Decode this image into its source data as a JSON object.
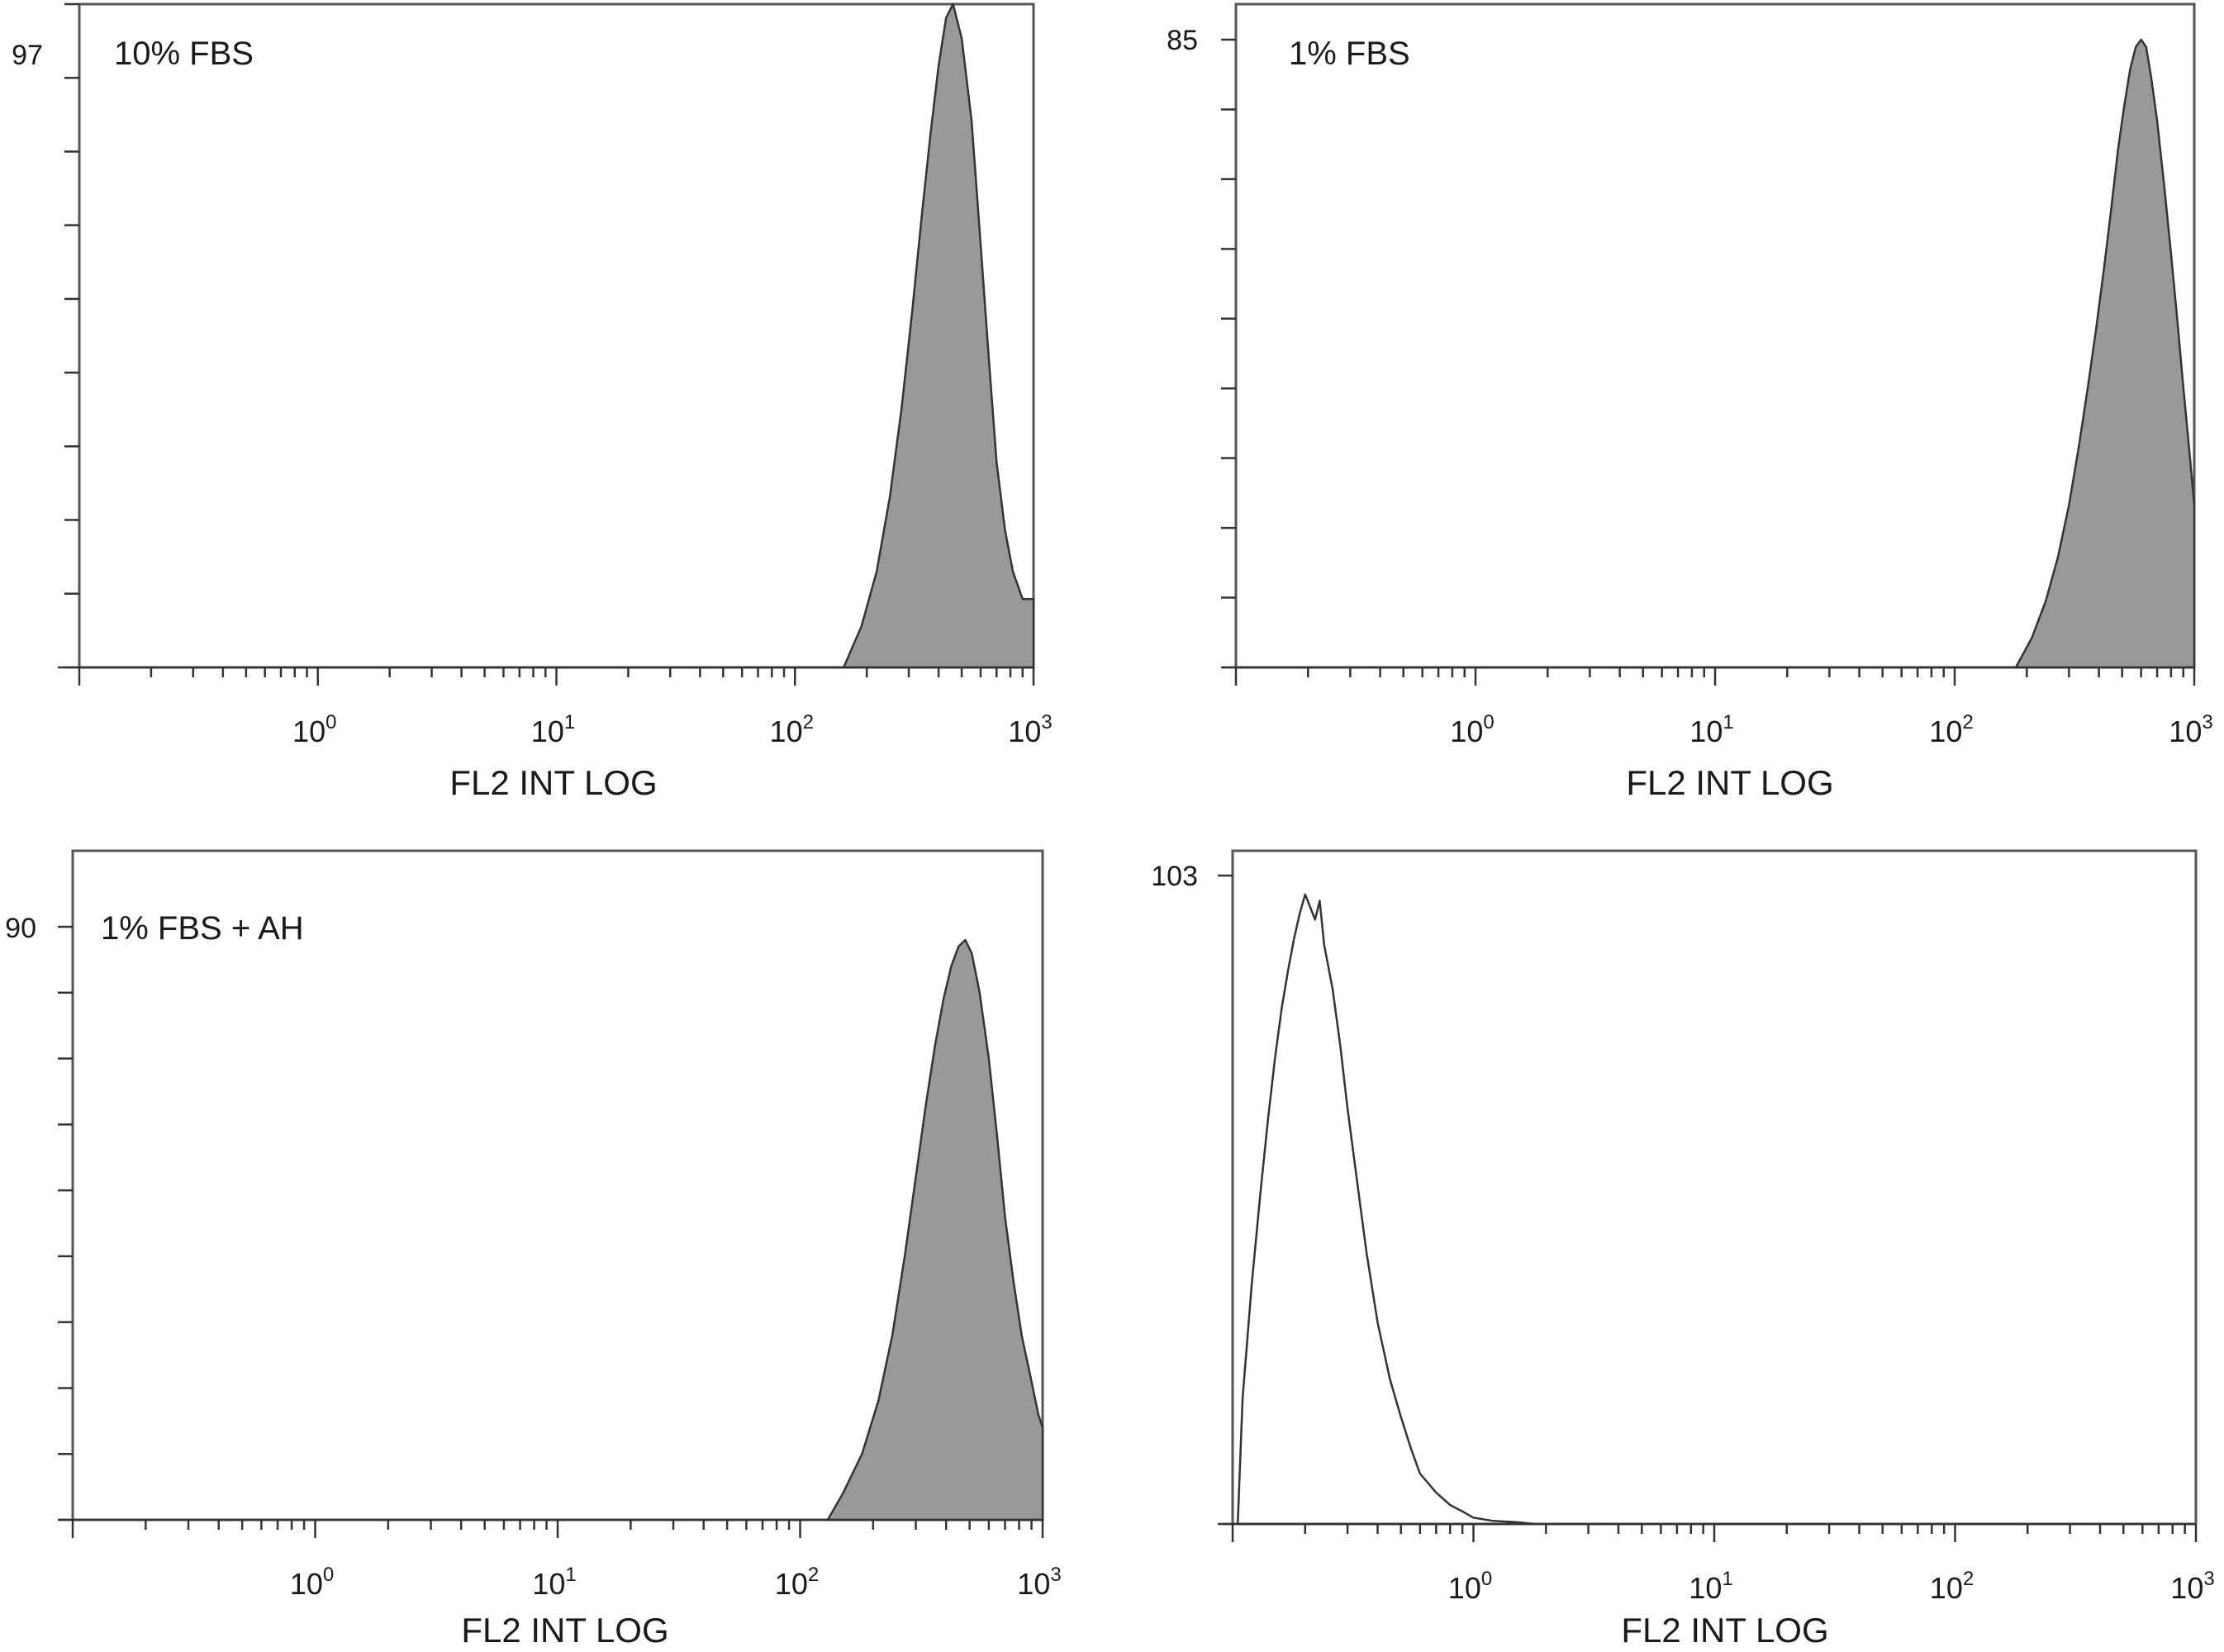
{
  "chart_data": [
    {
      "type": "area",
      "title": "10% FBS",
      "xlabel": "FL2 INT LOG",
      "ylabel": "",
      "x_scale": "log",
      "xlim": [
        0.1,
        1000
      ],
      "ylim": [
        0,
        97
      ],
      "y_max_label": "97",
      "y_minor_ticks": 9,
      "x_ticks": [
        {
          "base": "10",
          "exp": "0",
          "value": 1
        },
        {
          "base": "10",
          "exp": "1",
          "value": 10
        },
        {
          "base": "10",
          "exp": "2",
          "value": 100
        },
        {
          "base": "10",
          "exp": "3",
          "value": 1000
        }
      ],
      "fill": "#999999",
      "filled": true,
      "series": [
        {
          "x": [
            160,
            190,
            220,
            250,
            280,
            310,
            340,
            370,
            400,
            430,
            460,
            500,
            550,
            600,
            650,
            700,
            760,
            820,
            900,
            1000
          ],
          "y": [
            0,
            6,
            14,
            25,
            38,
            52,
            66,
            78,
            88,
            95,
            97,
            92,
            80,
            62,
            45,
            30,
            20,
            14,
            10,
            10
          ]
        }
      ]
    },
    {
      "type": "area",
      "title": "1% FBS",
      "xlabel": "FL2 INT LOG",
      "ylabel": "",
      "x_scale": "log",
      "xlim": [
        0.1,
        1000
      ],
      "ylim": [
        0,
        85
      ],
      "y_max_label": "85",
      "y_minor_ticks": 9,
      "x_ticks": [
        {
          "base": "10",
          "exp": "0",
          "value": 1
        },
        {
          "base": "10",
          "exp": "1",
          "value": 10
        },
        {
          "base": "10",
          "exp": "2",
          "value": 100
        },
        {
          "base": "10",
          "exp": "3",
          "value": 1000
        }
      ],
      "fill": "#999999",
      "filled": true,
      "series": [
        {
          "x": [
            180,
            210,
            240,
            270,
            300,
            330,
            360,
            390,
            420,
            450,
            480,
            510,
            540,
            570,
            600,
            630,
            660,
            700,
            750,
            800,
            850,
            900,
            950,
            1000
          ],
          "y": [
            0,
            4,
            9,
            15,
            22,
            30,
            38,
            46,
            54,
            62,
            70,
            76,
            81,
            84,
            85,
            84,
            80,
            74,
            65,
            56,
            47,
            38,
            30,
            22
          ]
        }
      ]
    },
    {
      "type": "area",
      "title": "1% FBS + AH",
      "xlabel": "FL2 INT LOG",
      "ylabel": "",
      "x_scale": "log",
      "xlim": [
        0.1,
        1000
      ],
      "ylim": [
        0,
        90
      ],
      "y_max_label": "90",
      "y_minor_ticks": 9,
      "x_ticks": [
        {
          "base": "10",
          "exp": "0",
          "value": 1
        },
        {
          "base": "10",
          "exp": "1",
          "value": 10
        },
        {
          "base": "10",
          "exp": "2",
          "value": 100
        },
        {
          "base": "10",
          "exp": "3",
          "value": 1000
        }
      ],
      "fill": "#999999",
      "filled": true,
      "series": [
        {
          "x": [
            130,
            150,
            180,
            210,
            240,
            270,
            300,
            330,
            360,
            390,
            420,
            450,
            480,
            510,
            550,
            600,
            650,
            700,
            760,
            820,
            900,
            960,
            1000
          ],
          "y": [
            0,
            4,
            10,
            18,
            28,
            40,
            52,
            63,
            72,
            79,
            84,
            87,
            88,
            86,
            80,
            70,
            58,
            46,
            36,
            28,
            21,
            16,
            14
          ]
        }
      ]
    },
    {
      "type": "line",
      "title": "",
      "xlabel": "FL2 INT LOG",
      "ylabel": "",
      "x_scale": "log",
      "xlim": [
        0.1,
        1000
      ],
      "ylim": [
        0,
        103
      ],
      "y_max_label": "103",
      "y_minor_ticks": 0,
      "x_ticks": [
        {
          "base": "10",
          "exp": "0",
          "value": 1
        },
        {
          "base": "10",
          "exp": "1",
          "value": 10
        },
        {
          "base": "10",
          "exp": "2",
          "value": 100
        },
        {
          "base": "10",
          "exp": "3",
          "value": 1000
        }
      ],
      "fill": "none",
      "filled": false,
      "series": [
        {
          "x": [
            0.105,
            0.11,
            0.12,
            0.13,
            0.14,
            0.15,
            0.16,
            0.17,
            0.18,
            0.19,
            0.2,
            0.21,
            0.22,
            0.23,
            0.24,
            0.26,
            0.28,
            0.3,
            0.33,
            0.36,
            0.4,
            0.45,
            0.5,
            0.55,
            0.6,
            0.7,
            0.8,
            0.9,
            1.0,
            1.2,
            1.5,
            1.8
          ],
          "y": [
            0,
            20,
            38,
            52,
            64,
            74,
            82,
            88,
            93,
            97,
            100,
            98,
            96,
            99,
            92,
            85,
            76,
            66,
            54,
            43,
            32,
            23,
            17,
            12,
            8,
            5,
            3,
            2,
            1,
            0.5,
            0.3,
            0
          ]
        }
      ]
    }
  ]
}
